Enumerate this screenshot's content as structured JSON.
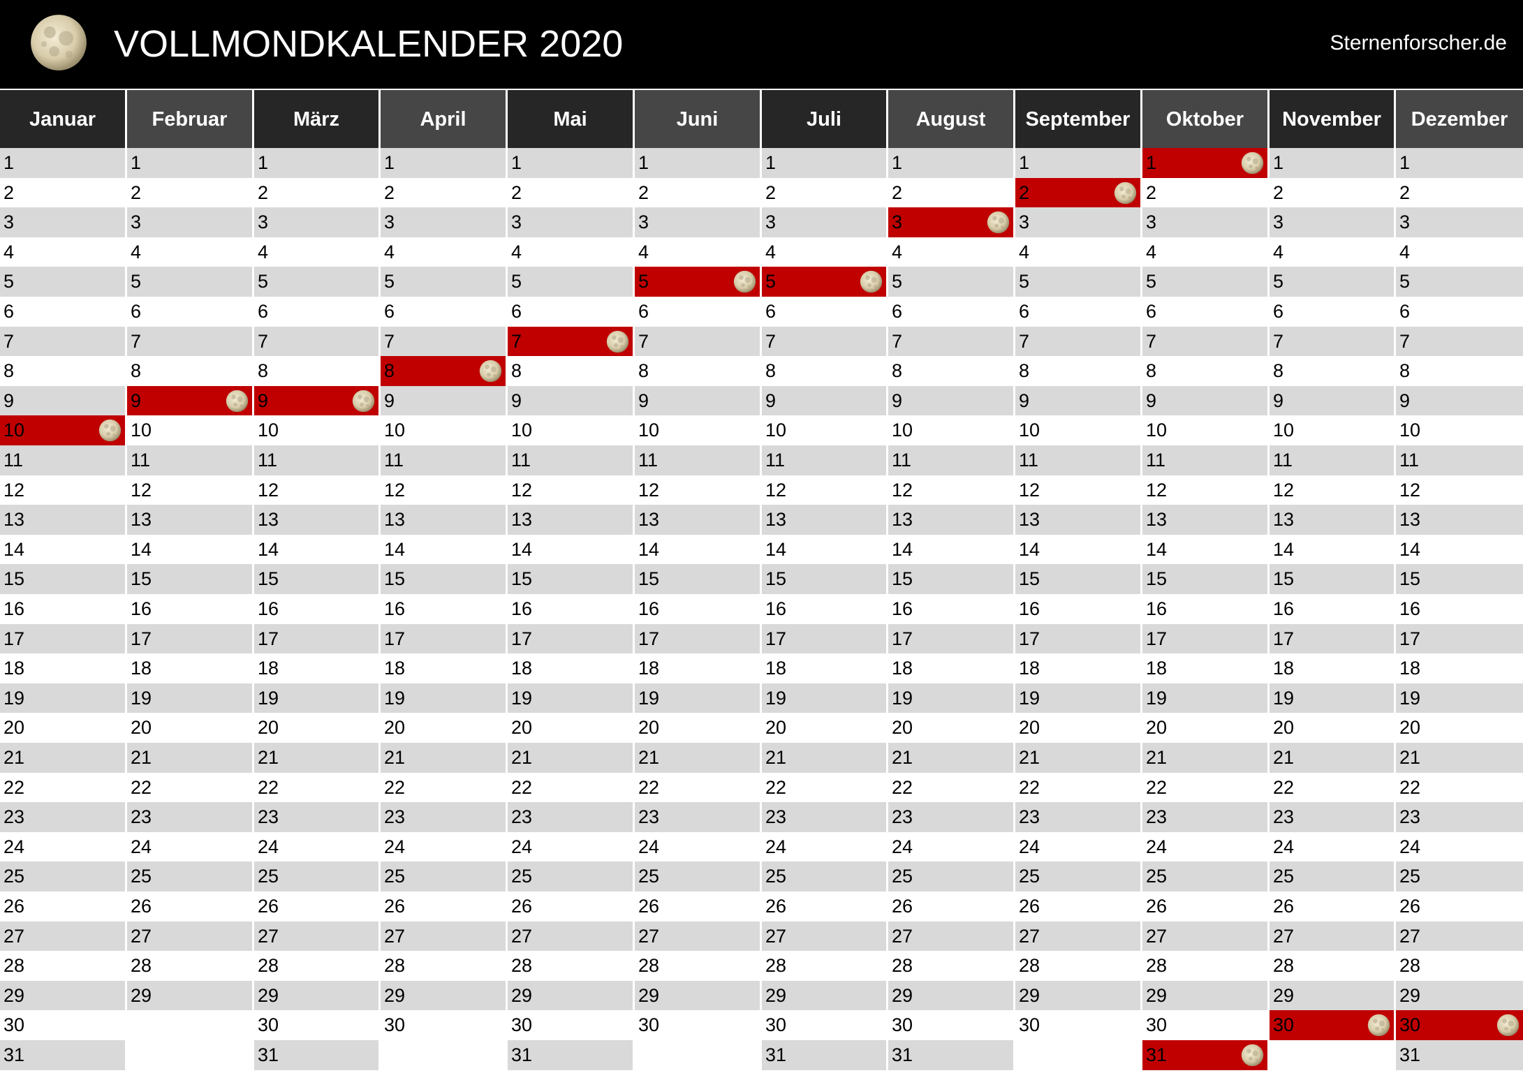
{
  "header": {
    "title": "VOLLMONDKALENDER 2020",
    "website": "Sternenforscher.de",
    "logo_icon": "full-moon-icon"
  },
  "colors": {
    "header_bg": "#000000",
    "month_header_dark": "#262626",
    "month_header_light": "#464646",
    "row_shade": "#d9d9d9",
    "full_moon_highlight": "#c00000"
  },
  "months": [
    {
      "name": "Januar",
      "days": 31,
      "full_moon": 10
    },
    {
      "name": "Februar",
      "days": 29,
      "full_moon": 9
    },
    {
      "name": "März",
      "days": 31,
      "full_moon": 9
    },
    {
      "name": "April",
      "days": 30,
      "full_moon": 8
    },
    {
      "name": "Mai",
      "days": 31,
      "full_moon": 7
    },
    {
      "name": "Juni",
      "days": 30,
      "full_moon": 5
    },
    {
      "name": "Juli",
      "days": 31,
      "full_moon": 5
    },
    {
      "name": "August",
      "days": 31,
      "full_moon": 3
    },
    {
      "name": "September",
      "days": 30,
      "full_moon": 2
    },
    {
      "name": "Oktober",
      "days": 31,
      "full_moon": [
        1,
        31
      ]
    },
    {
      "name": "November",
      "days": 30,
      "full_moon": 30
    },
    {
      "name": "Dezember",
      "days": 31,
      "full_moon": 30
    }
  ]
}
